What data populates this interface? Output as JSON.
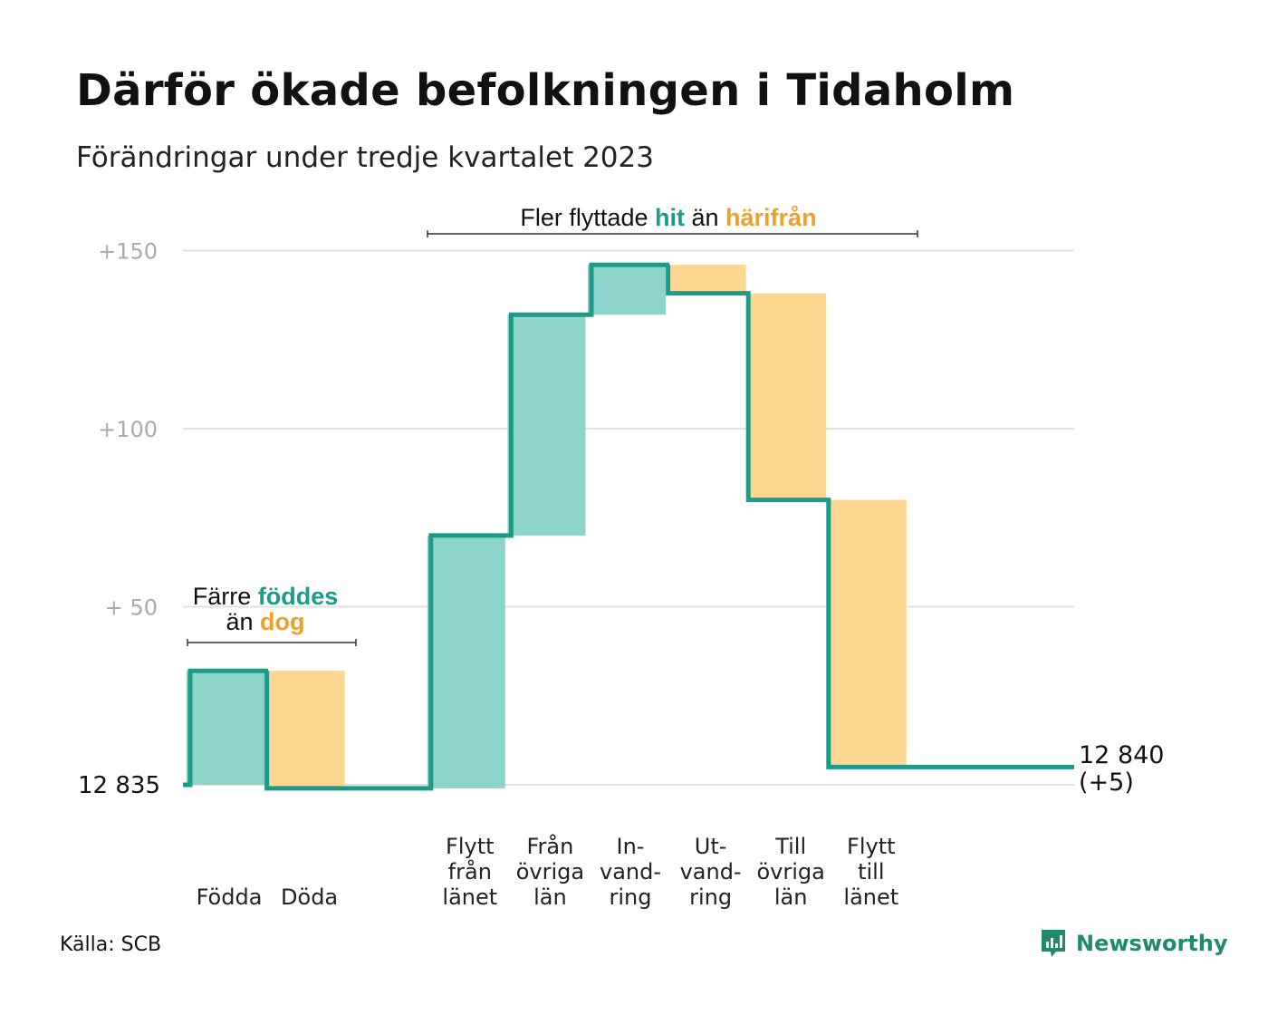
{
  "title": "Därför ökade befolkningen i Tidaholm",
  "subtitle": "Förändringar under tredje kvartalet 2023",
  "source": "Källa: SCB",
  "brand": "Newsworthy",
  "colors": {
    "line": "#1e9a88",
    "increase": "#8dd4cb",
    "decrease": "#fbd792",
    "teal_text": "#1e9a88",
    "orange_text": "#eda12a",
    "grid": "#e2e2e2",
    "tick": "#aaaaaa"
  },
  "annotations": {
    "natural": {
      "prefix": "Färre",
      "hl1": "föddes",
      "mid": "än",
      "hl2": "dog"
    },
    "migration": {
      "prefix": "Fler flyttade",
      "hl1": "hit",
      "mid": "än",
      "hl2": "härifrån"
    }
  },
  "chart_data": {
    "type": "waterfall",
    "base_label": "12  835",
    "end_label": [
      "12 840",
      "(+5)"
    ],
    "y_ticks": [
      {
        "value": 0,
        "label": "12  835"
      },
      {
        "value": 50,
        "label": "+  50"
      },
      {
        "value": 100,
        "label": "+100"
      },
      {
        "value": 150,
        "label": "+150"
      }
    ],
    "ylim": [
      0,
      150
    ],
    "steps": [
      {
        "label": [
          "Födda"
        ],
        "delta": 32,
        "kind": "increase"
      },
      {
        "label": [
          "Döda"
        ],
        "delta": -33,
        "kind": "decrease"
      },
      {
        "label": [],
        "delta": 0,
        "kind": "gap"
      },
      {
        "label": [
          "Flytt",
          "från",
          "länet"
        ],
        "delta": 71,
        "kind": "increase"
      },
      {
        "label": [
          "Från",
          "övriga",
          "län"
        ],
        "delta": 62,
        "kind": "increase"
      },
      {
        "label": [
          "In-",
          "vand-",
          "ring"
        ],
        "delta": 14,
        "kind": "increase"
      },
      {
        "label": [
          "Ut-",
          "vand-",
          "ring"
        ],
        "delta": -8,
        "kind": "decrease"
      },
      {
        "label": [
          "Till",
          "övriga",
          "län"
        ],
        "delta": -58,
        "kind": "decrease"
      },
      {
        "label": [
          "Flytt",
          "till",
          "länet"
        ],
        "delta": -75,
        "kind": "decrease"
      }
    ],
    "final_value": 5
  }
}
